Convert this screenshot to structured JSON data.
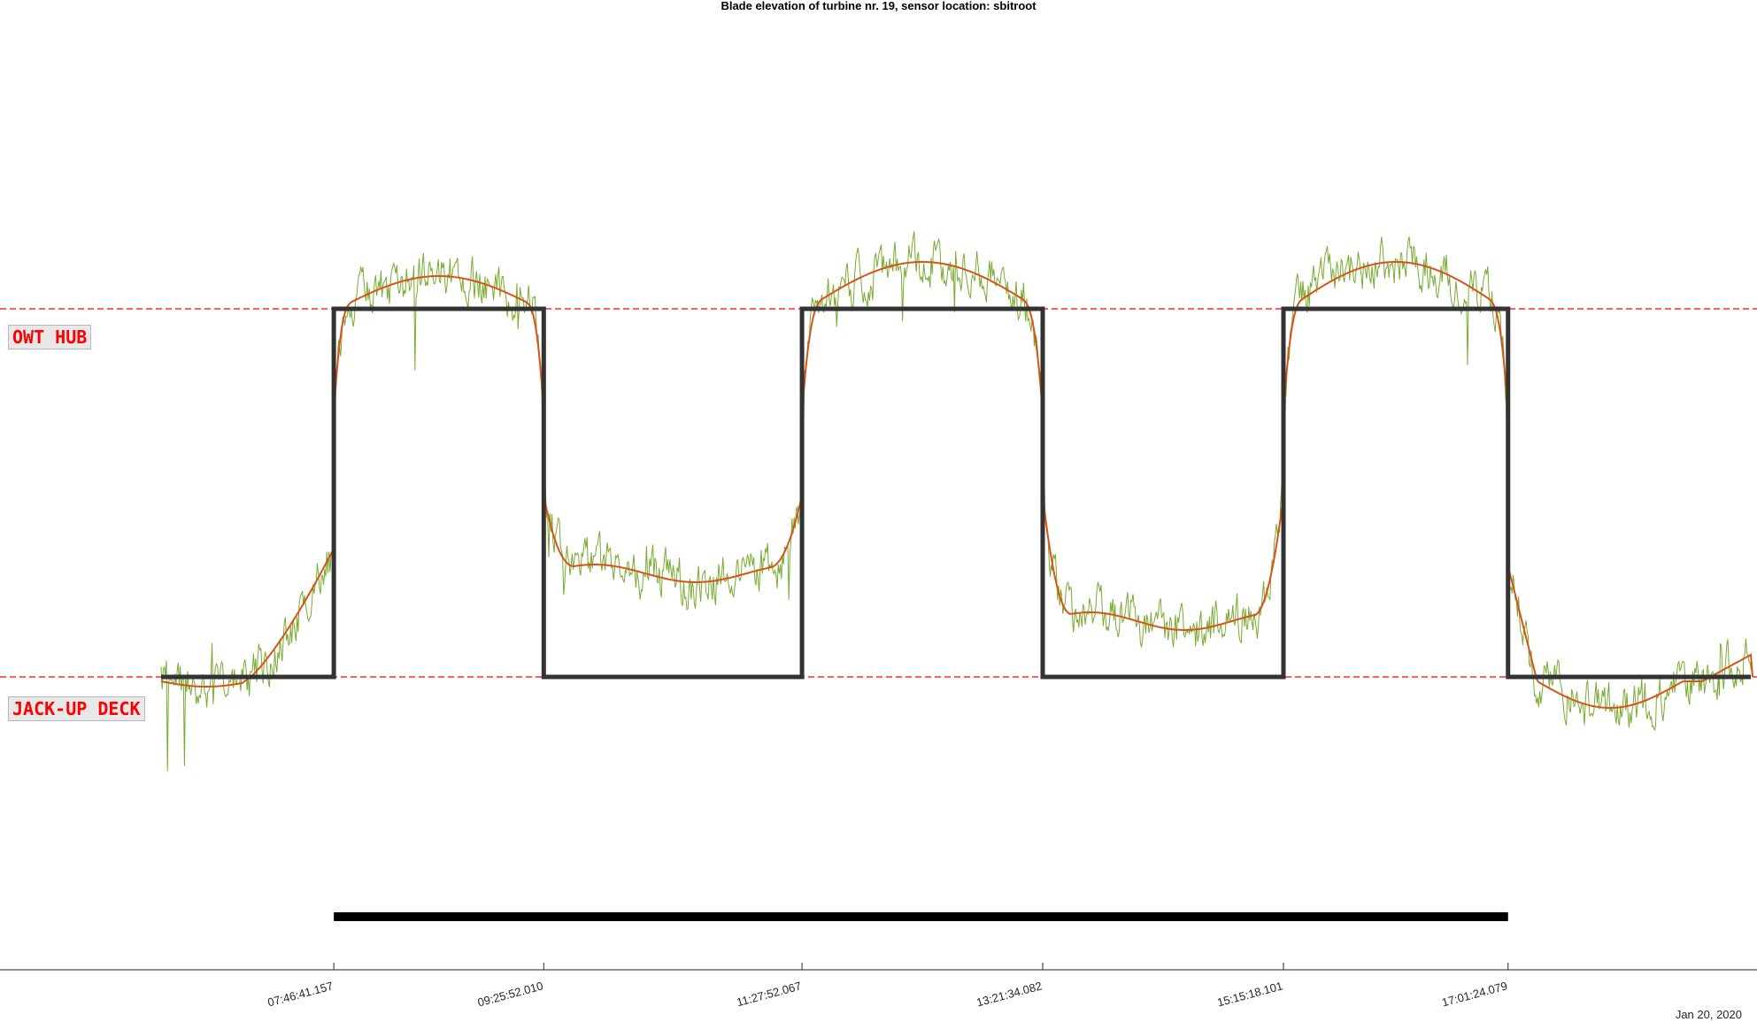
{
  "chart_data": {
    "type": "line",
    "title": "Blade elevation of turbine nr. 19, sensor location: sbitroot",
    "date_label": "Jan 20, 2020",
    "x_ticks": [
      "07:46:41.157",
      "09:25:52.010",
      "11:27:52.067",
      "13:21:34.082",
      "15:15:18.101",
      "17:01:24.079"
    ],
    "x_range": [
      "05:09",
      "18:59"
    ],
    "reference_levels": [
      {
        "label": "OWT HUB",
        "color": "#ff0000",
        "style": "dashed"
      },
      {
        "label": "JACK-UP DECK",
        "color": "#ff0000",
        "style": "dashed"
      }
    ],
    "series": [
      {
        "color": "#77ac30",
        "kind": "raw sensor elevation"
      },
      {
        "color": "#d95319",
        "kind": "smoothed elevation"
      },
      {
        "color": "#333333",
        "kind": "step state",
        "steps": [
          {
            "start": "05:09",
            "end": "07:46:41.157",
            "level": "JACK-UP DECK"
          },
          {
            "start": "07:46:41.157",
            "end": "09:25:52.010",
            "level": "OWT HUB"
          },
          {
            "start": "09:25:52.010",
            "end": "11:27:52.067",
            "level": "JACK-UP DECK"
          },
          {
            "start": "11:27:52.067",
            "end": "13:21:34.082",
            "level": "OWT HUB"
          },
          {
            "start": "13:21:34.082",
            "end": "15:15:18.101",
            "level": "JACK-UP DECK"
          },
          {
            "start": "15:15:18.101",
            "end": "17:01:24.079",
            "level": "OWT HUB"
          },
          {
            "start": "17:01:24.079",
            "end": "18:59",
            "level": "JACK-UP DECK"
          }
        ]
      }
    ],
    "duration_bar": {
      "start": "07:46:41.157",
      "end": "17:01:24.079",
      "color": "#000000"
    },
    "grid": false,
    "legend": "none"
  }
}
